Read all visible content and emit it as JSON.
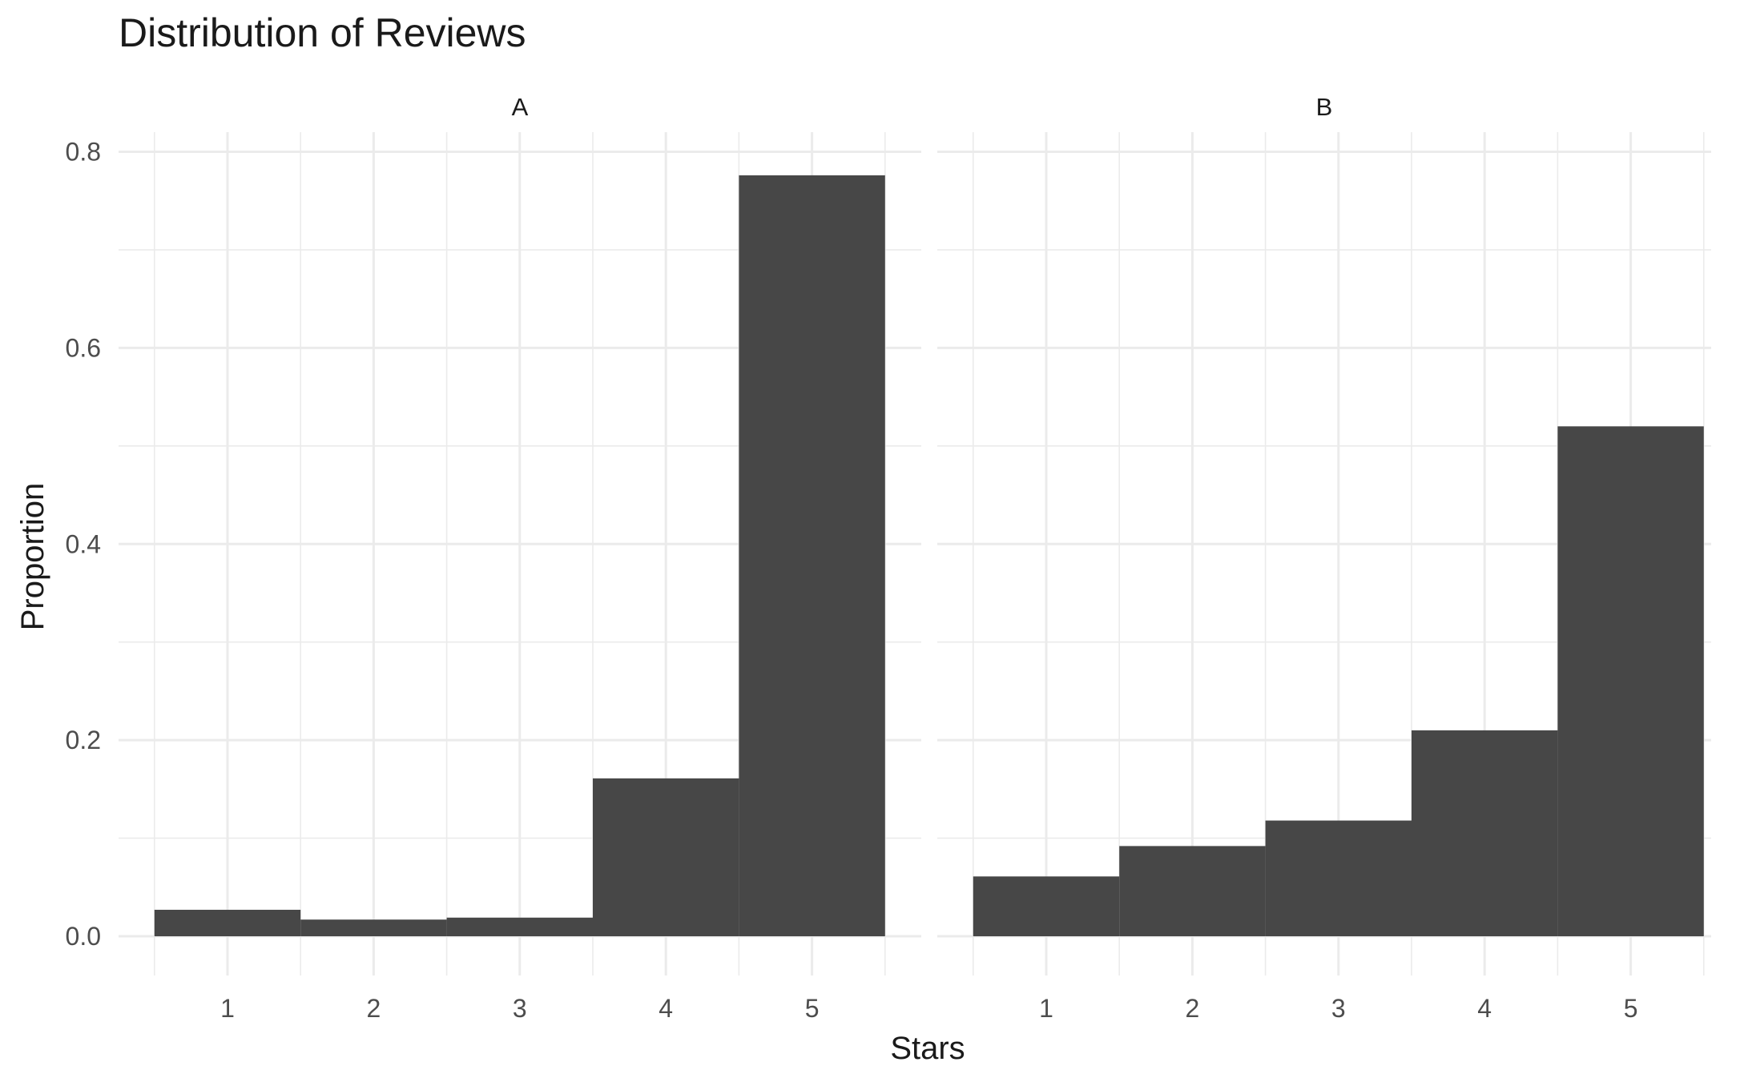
{
  "chart_data": {
    "type": "bar",
    "title": "Distribution of Reviews",
    "xlabel": "Stars",
    "ylabel": "Proportion",
    "categories": [
      "1",
      "2",
      "3",
      "4",
      "5"
    ],
    "ylim": [
      -0.04,
      0.82
    ],
    "yticks": [
      "0.0",
      "0.2",
      "0.4",
      "0.6",
      "0.8"
    ],
    "ytick_values": [
      0,
      0.2,
      0.4,
      0.6,
      0.8
    ],
    "grid": true,
    "bar_color": "#474747",
    "panels": [
      {
        "name": "A",
        "values": [
          0.027,
          0.017,
          0.019,
          0.161,
          0.776
        ]
      },
      {
        "name": "B",
        "values": [
          0.061,
          0.092,
          0.118,
          0.21,
          0.52
        ]
      }
    ]
  }
}
